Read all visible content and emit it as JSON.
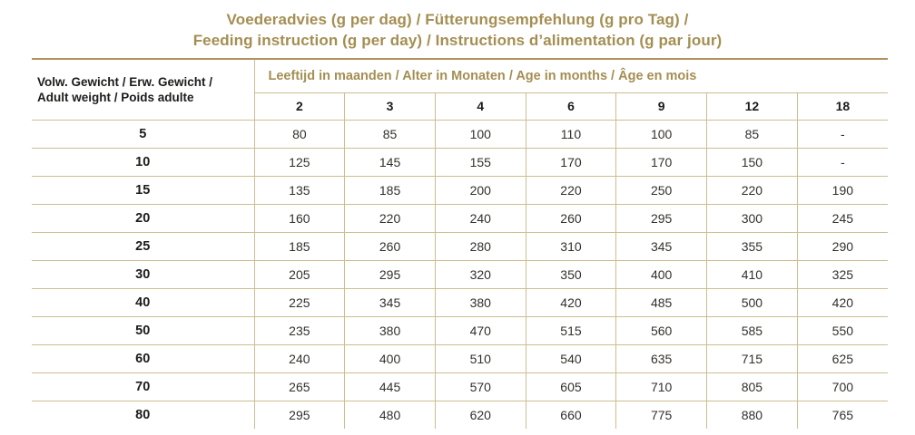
{
  "title": {
    "line1": "Voederadvies (g per dag) / Fütterungsempfehlung (g pro Tag) /",
    "line2": "Feeding instruction (g per day) / Instructions d’alimentation (g par jour)"
  },
  "table": {
    "row_header_line1": "Volw. Gewicht / Erw. Gewicht /",
    "row_header_line2": "Adult weight / Poids adulte",
    "col_group_label": "Leeftijd in maanden / Alter in Monaten / Age in months / Âge en mois",
    "age_columns": [
      "2",
      "3",
      "4",
      "6",
      "9",
      "12",
      "18"
    ],
    "rows": [
      {
        "weight": "5",
        "values": [
          "80",
          "85",
          "100",
          "110",
          "100",
          "85",
          "-"
        ]
      },
      {
        "weight": "10",
        "values": [
          "125",
          "145",
          "155",
          "170",
          "170",
          "150",
          "-"
        ]
      },
      {
        "weight": "15",
        "values": [
          "135",
          "185",
          "200",
          "220",
          "250",
          "220",
          "190"
        ]
      },
      {
        "weight": "20",
        "values": [
          "160",
          "220",
          "240",
          "260",
          "295",
          "300",
          "245"
        ]
      },
      {
        "weight": "25",
        "values": [
          "185",
          "260",
          "280",
          "310",
          "345",
          "355",
          "290"
        ]
      },
      {
        "weight": "30",
        "values": [
          "205",
          "295",
          "320",
          "350",
          "400",
          "410",
          "325"
        ]
      },
      {
        "weight": "40",
        "values": [
          "225",
          "345",
          "380",
          "420",
          "485",
          "500",
          "420"
        ]
      },
      {
        "weight": "50",
        "values": [
          "235",
          "380",
          "470",
          "515",
          "560",
          "585",
          "550"
        ]
      },
      {
        "weight": "60",
        "values": [
          "240",
          "400",
          "510",
          "540",
          "635",
          "715",
          "625"
        ]
      },
      {
        "weight": "70",
        "values": [
          "265",
          "445",
          "570",
          "605",
          "710",
          "805",
          "700"
        ]
      },
      {
        "weight": "80",
        "values": [
          "295",
          "480",
          "620",
          "660",
          "775",
          "880",
          "765"
        ]
      }
    ]
  },
  "colors": {
    "accent_gold": "#a48e52",
    "grid_line": "#cdbd90",
    "top_rule": "#b0915f",
    "text_black": "#1d1c1a"
  }
}
